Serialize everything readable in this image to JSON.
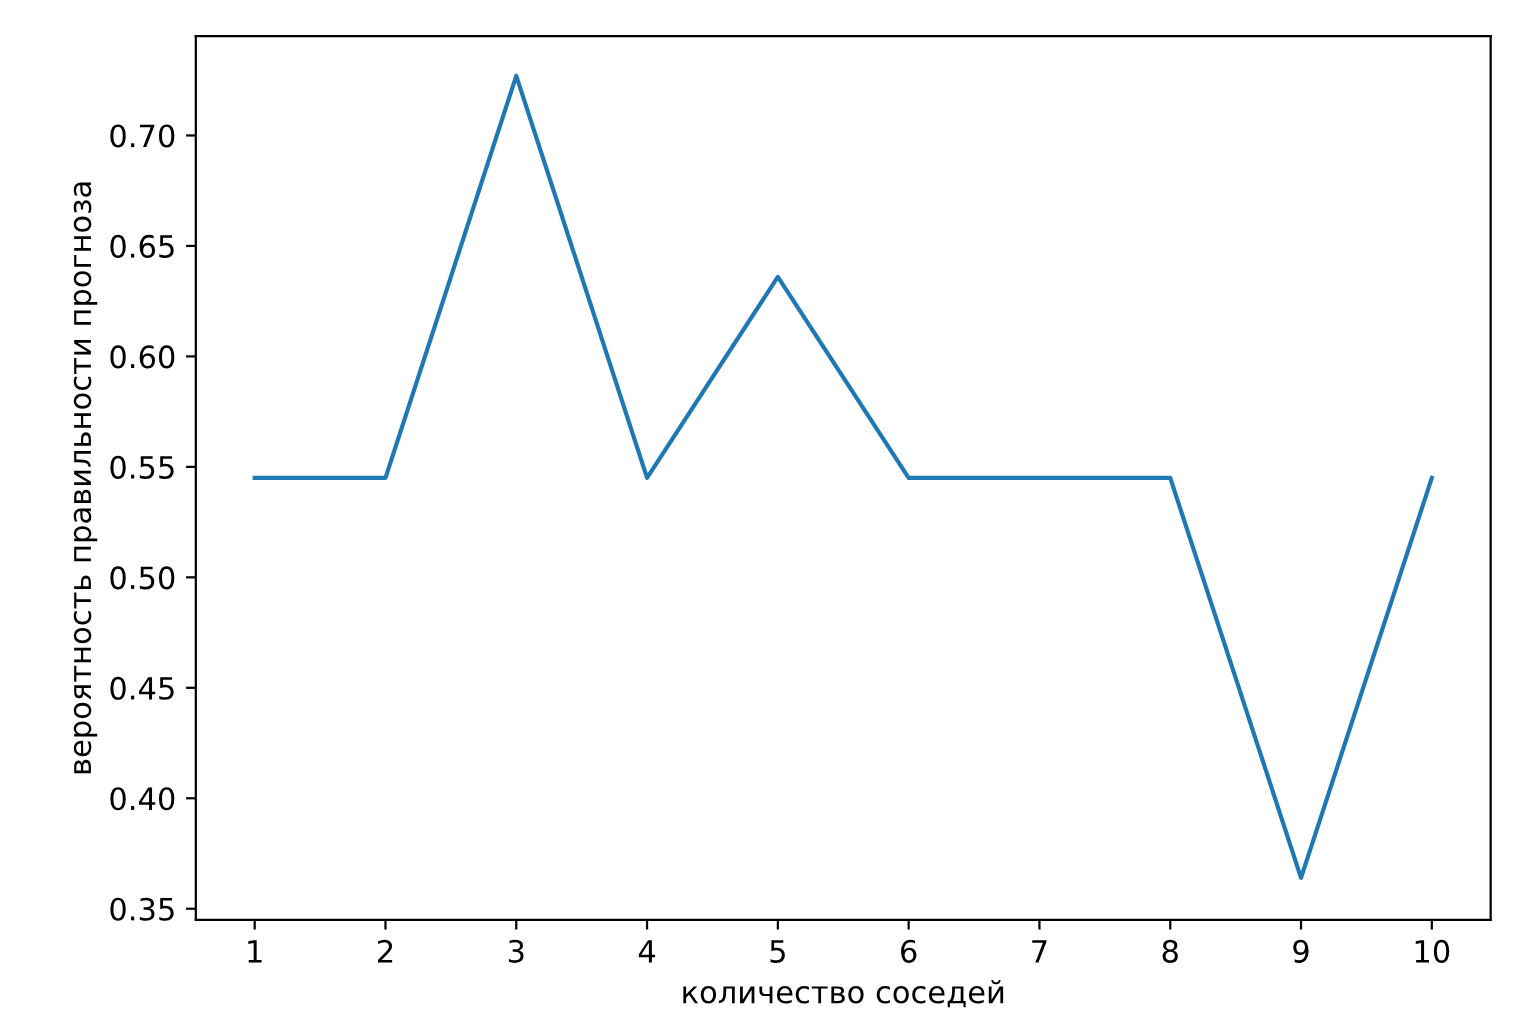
{
  "chart_data": {
    "type": "line",
    "xlabel": "количество соседей",
    "ylabel": "вероятность правильности прогноза",
    "x": [
      1,
      2,
      3,
      4,
      5,
      6,
      7,
      8,
      9,
      10
    ],
    "series": [
      {
        "color": "#1f77b4",
        "values": [
          0.545,
          0.545,
          0.727,
          0.545,
          0.636,
          0.545,
          0.545,
          0.545,
          0.364,
          0.545
        ]
      }
    ],
    "xlim": [
      0.55,
      10.45
    ],
    "ylim": [
      0.345,
      0.745
    ],
    "xticks": [
      1,
      2,
      3,
      4,
      5,
      6,
      7,
      8,
      9,
      10
    ],
    "yticks": [
      {
        "value": 0.35,
        "label": "0.35"
      },
      {
        "value": 0.4,
        "label": "0.40"
      },
      {
        "value": 0.45,
        "label": "0.45"
      },
      {
        "value": 0.5,
        "label": "0.50"
      },
      {
        "value": 0.55,
        "label": "0.55"
      },
      {
        "value": 0.6,
        "label": "0.60"
      },
      {
        "value": 0.65,
        "label": "0.65"
      },
      {
        "value": 0.7,
        "label": "0.70"
      }
    ],
    "grid": false,
    "legend": false
  }
}
